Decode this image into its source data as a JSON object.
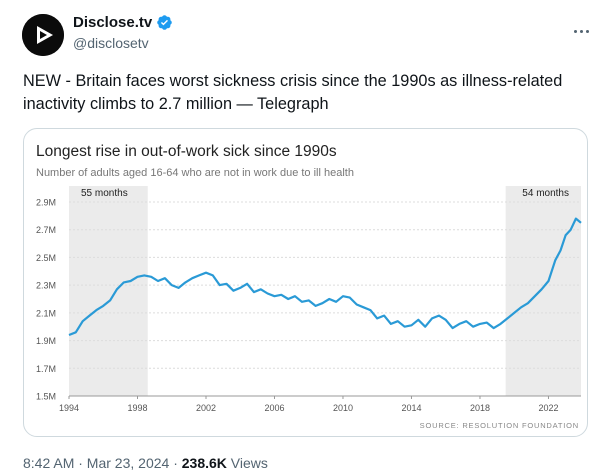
{
  "tweet": {
    "author": {
      "display_name": "Disclose.tv",
      "handle": "@disclosetv",
      "verified": true,
      "avatar_icon": "play-logo-icon",
      "verified_icon": "verified-badge-icon",
      "verified_color": "#1d9bf0"
    },
    "more_icon": "more-options-icon",
    "text": "NEW - Britain faces worst sickness crisis since the 1990s as illness-related inactivity climbs to 2.7 million — Telegraph",
    "timestamp": "8:42 AM · Mar 23, 2024",
    "separator": " · ",
    "views_count": "238.6K",
    "views_label": " Views"
  },
  "chart_data": {
    "type": "line",
    "title": "Longest rise in out-of-work sick since 1990s",
    "subtitle": "Number of adults aged 16-64 who are not in work due to ill health",
    "source": "SOURCE: RESOLUTION FOUNDATION",
    "line_color": "#2a9ad6",
    "shade_color": "#ebebeb",
    "ylim": [
      1.5,
      2.9
    ],
    "yticks": [
      {
        "value": 1.5,
        "label": "1.5M"
      },
      {
        "value": 1.7,
        "label": "1.7M"
      },
      {
        "value": 1.9,
        "label": "1.9M"
      },
      {
        "value": 2.1,
        "label": "2.1M"
      },
      {
        "value": 2.3,
        "label": "2.3M"
      },
      {
        "value": 2.5,
        "label": "2.5M"
      },
      {
        "value": 2.7,
        "label": "2.7M"
      },
      {
        "value": 2.9,
        "label": "2.9M"
      }
    ],
    "xlim": [
      1994,
      2023.9
    ],
    "xticks": [
      1994,
      1998,
      2002,
      2006,
      2010,
      2014,
      2018,
      2022
    ],
    "shaded_periods": [
      {
        "from": 1994,
        "to": 1998.6,
        "label": "55 months"
      },
      {
        "from": 2019.5,
        "to": 2023.9,
        "label": "54 months"
      }
    ],
    "series": [
      {
        "points": [
          [
            1994.0,
            1.94
          ],
          [
            1994.4,
            1.96
          ],
          [
            1994.8,
            2.04
          ],
          [
            1995.2,
            2.08
          ],
          [
            1995.6,
            2.12
          ],
          [
            1996.0,
            2.15
          ],
          [
            1996.4,
            2.19
          ],
          [
            1996.8,
            2.27
          ],
          [
            1997.2,
            2.32
          ],
          [
            1997.6,
            2.33
          ],
          [
            1998.0,
            2.36
          ],
          [
            1998.4,
            2.37
          ],
          [
            1998.8,
            2.36
          ],
          [
            1999.2,
            2.33
          ],
          [
            1999.6,
            2.35
          ],
          [
            2000.0,
            2.3
          ],
          [
            2000.4,
            2.28
          ],
          [
            2000.8,
            2.32
          ],
          [
            2001.2,
            2.35
          ],
          [
            2001.6,
            2.37
          ],
          [
            2002.0,
            2.39
          ],
          [
            2002.4,
            2.37
          ],
          [
            2002.8,
            2.3
          ],
          [
            2003.2,
            2.31
          ],
          [
            2003.6,
            2.26
          ],
          [
            2004.0,
            2.28
          ],
          [
            2004.4,
            2.31
          ],
          [
            2004.8,
            2.25
          ],
          [
            2005.2,
            2.27
          ],
          [
            2005.6,
            2.24
          ],
          [
            2006.0,
            2.22
          ],
          [
            2006.4,
            2.23
          ],
          [
            2006.8,
            2.2
          ],
          [
            2007.2,
            2.22
          ],
          [
            2007.6,
            2.18
          ],
          [
            2008.0,
            2.19
          ],
          [
            2008.4,
            2.15
          ],
          [
            2008.8,
            2.17
          ],
          [
            2009.2,
            2.2
          ],
          [
            2009.6,
            2.18
          ],
          [
            2010.0,
            2.22
          ],
          [
            2010.4,
            2.21
          ],
          [
            2010.8,
            2.16
          ],
          [
            2011.2,
            2.14
          ],
          [
            2011.6,
            2.12
          ],
          [
            2012.0,
            2.06
          ],
          [
            2012.4,
            2.08
          ],
          [
            2012.8,
            2.02
          ],
          [
            2013.2,
            2.04
          ],
          [
            2013.6,
            2.0
          ],
          [
            2014.0,
            2.01
          ],
          [
            2014.4,
            2.05
          ],
          [
            2014.8,
            2.0
          ],
          [
            2015.2,
            2.06
          ],
          [
            2015.6,
            2.08
          ],
          [
            2016.0,
            2.05
          ],
          [
            2016.4,
            1.99
          ],
          [
            2016.8,
            2.02
          ],
          [
            2017.2,
            2.04
          ],
          [
            2017.6,
            2.0
          ],
          [
            2018.0,
            2.02
          ],
          [
            2018.4,
            2.03
          ],
          [
            2018.8,
            1.99
          ],
          [
            2019.2,
            2.02
          ],
          [
            2019.6,
            2.06
          ],
          [
            2020.0,
            2.1
          ],
          [
            2020.4,
            2.14
          ],
          [
            2020.8,
            2.17
          ],
          [
            2021.2,
            2.22
          ],
          [
            2021.6,
            2.27
          ],
          [
            2022.0,
            2.33
          ],
          [
            2022.4,
            2.48
          ],
          [
            2022.7,
            2.55
          ],
          [
            2023.0,
            2.66
          ],
          [
            2023.3,
            2.7
          ],
          [
            2023.6,
            2.78
          ],
          [
            2023.9,
            2.75
          ]
        ]
      }
    ]
  }
}
